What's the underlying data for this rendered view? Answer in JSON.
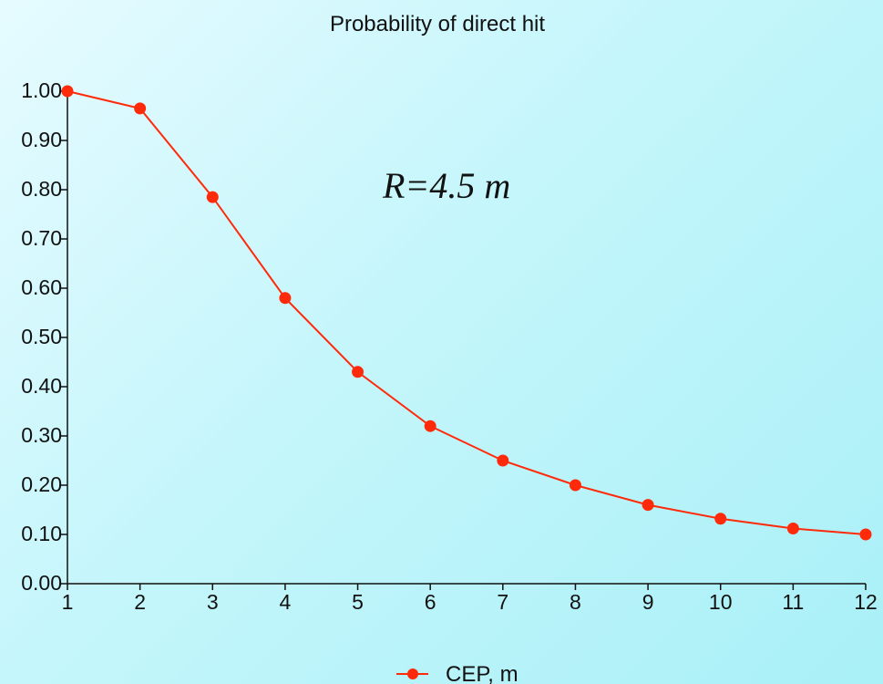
{
  "chart_data": {
    "type": "line",
    "title": "Probability of direct hit",
    "annotation": "R=4.5 m",
    "x": [
      1,
      2,
      3,
      4,
      5,
      6,
      7,
      8,
      9,
      10,
      11,
      12
    ],
    "series": [
      {
        "name": "CEP, m",
        "color": "#ff2a0a",
        "values": [
          1.0,
          0.965,
          0.785,
          0.58,
          0.43,
          0.32,
          0.25,
          0.2,
          0.16,
          0.132,
          0.112,
          0.1
        ]
      }
    ],
    "xlim": [
      1,
      12
    ],
    "ylim": [
      0,
      1.0
    ],
    "y_ticks": [
      "0.00",
      "0.10",
      "0.20",
      "0.30",
      "0.40",
      "0.50",
      "0.60",
      "0.70",
      "0.80",
      "0.90",
      "1.00"
    ],
    "x_ticks": [
      "1",
      "2",
      "3",
      "4",
      "5",
      "6",
      "7",
      "8",
      "9",
      "10",
      "11",
      "12"
    ],
    "grid": false,
    "legend_position": "bottom-center"
  }
}
